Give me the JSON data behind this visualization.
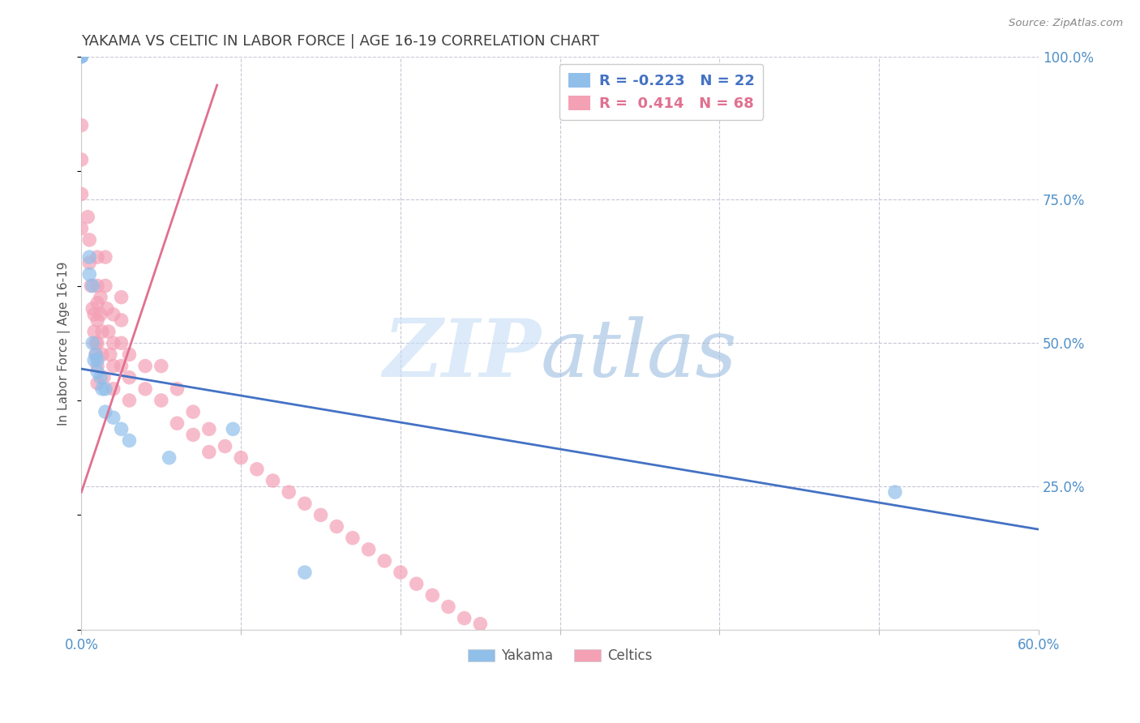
{
  "title": "YAKAMA VS CELTIC IN LABOR FORCE | AGE 16-19 CORRELATION CHART",
  "source": "Source: ZipAtlas.com",
  "ylabel": "In Labor Force | Age 16-19",
  "x_min": 0.0,
  "x_max": 0.6,
  "y_min": 0.0,
  "y_max": 1.0,
  "watermark_zip": "ZIP",
  "watermark_atlas": "atlas",
  "legend_r_yakama": "-0.223",
  "legend_n_yakama": "22",
  "legend_r_celtic": "0.414",
  "legend_n_celtic": "68",
  "yakama_color": "#90bfea",
  "celtic_color": "#f4a0b5",
  "yakama_line_color": "#4472c4",
  "celtic_line_color": "#e07090",
  "title_color": "#404040",
  "axis_label_color": "#5090c8",
  "grid_color": "#c8c8d8",
  "yakama_x": [
    0.0,
    0.0,
    0.0,
    0.005,
    0.005,
    0.007,
    0.007,
    0.008,
    0.009,
    0.01,
    0.01,
    0.012,
    0.013,
    0.015,
    0.015,
    0.02,
    0.025,
    0.03,
    0.055,
    0.095,
    0.14,
    0.51
  ],
  "yakama_y": [
    1.0,
    1.0,
    1.0,
    0.65,
    0.62,
    0.6,
    0.5,
    0.47,
    0.48,
    0.47,
    0.45,
    0.44,
    0.42,
    0.42,
    0.38,
    0.37,
    0.35,
    0.33,
    0.3,
    0.35,
    0.1,
    0.24
  ],
  "celtic_x": [
    0.0,
    0.0,
    0.0,
    0.0,
    0.004,
    0.005,
    0.005,
    0.006,
    0.007,
    0.008,
    0.008,
    0.009,
    0.009,
    0.01,
    0.01,
    0.01,
    0.01,
    0.01,
    0.01,
    0.01,
    0.012,
    0.012,
    0.013,
    0.013,
    0.014,
    0.015,
    0.015,
    0.016,
    0.017,
    0.018,
    0.02,
    0.02,
    0.02,
    0.02,
    0.025,
    0.025,
    0.025,
    0.025,
    0.03,
    0.03,
    0.03,
    0.04,
    0.04,
    0.05,
    0.05,
    0.06,
    0.06,
    0.07,
    0.07,
    0.08,
    0.08,
    0.09,
    0.1,
    0.11,
    0.12,
    0.13,
    0.14,
    0.15,
    0.16,
    0.17,
    0.18,
    0.19,
    0.2,
    0.21,
    0.22,
    0.23,
    0.24,
    0.25
  ],
  "celtic_y": [
    0.88,
    0.82,
    0.76,
    0.7,
    0.72,
    0.68,
    0.64,
    0.6,
    0.56,
    0.55,
    0.52,
    0.5,
    0.48,
    0.65,
    0.6,
    0.57,
    0.54,
    0.5,
    0.46,
    0.43,
    0.58,
    0.55,
    0.52,
    0.48,
    0.44,
    0.65,
    0.6,
    0.56,
    0.52,
    0.48,
    0.55,
    0.5,
    0.46,
    0.42,
    0.58,
    0.54,
    0.5,
    0.46,
    0.48,
    0.44,
    0.4,
    0.46,
    0.42,
    0.46,
    0.4,
    0.42,
    0.36,
    0.38,
    0.34,
    0.35,
    0.31,
    0.32,
    0.3,
    0.28,
    0.26,
    0.24,
    0.22,
    0.2,
    0.18,
    0.16,
    0.14,
    0.12,
    0.1,
    0.08,
    0.06,
    0.04,
    0.02,
    0.01
  ],
  "yakama_line_x": [
    0.0,
    0.6
  ],
  "yakama_line_y": [
    0.455,
    0.175
  ],
  "celtic_line_x": [
    0.0,
    0.085
  ],
  "celtic_line_y": [
    0.24,
    0.95
  ]
}
